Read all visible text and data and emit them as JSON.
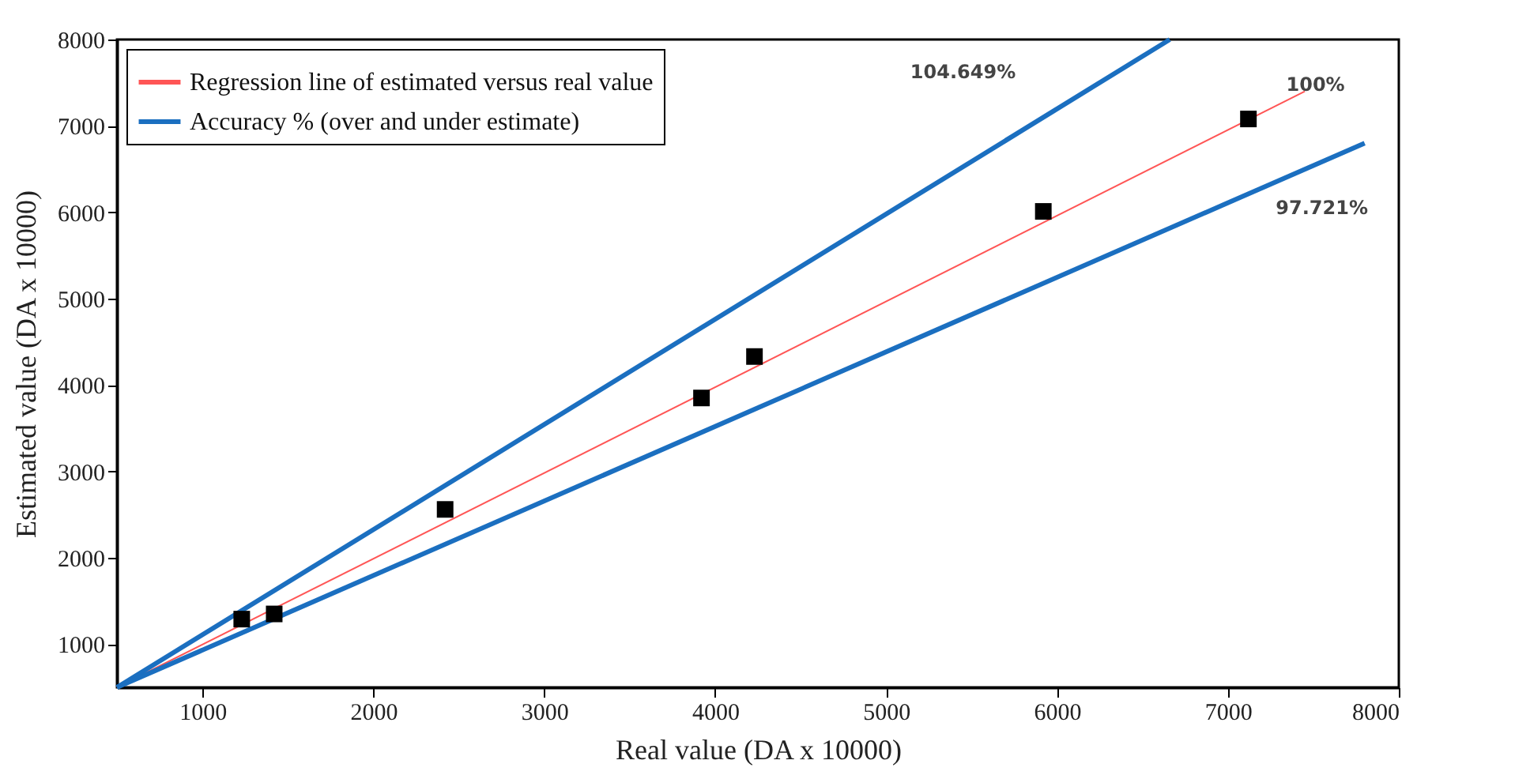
{
  "chart_data": {
    "type": "scatter",
    "xlabel": "Real value (DA x 10000)",
    "ylabel": "Estimated value (DA x 10000)",
    "xlim": [
      500,
      8000
    ],
    "xticks": [
      1000,
      2000,
      3000,
      4000,
      5000,
      6000,
      7000,
      8000
    ],
    "ylim": [
      500,
      8000
    ],
    "yticks": [
      1000,
      2000,
      3000,
      4000,
      5000,
      6000,
      7000,
      8000
    ],
    "grid": false,
    "legend": "top left",
    "series": [
      {
        "color": "#000000",
        "marker": "square",
        "x": [
          1230,
          1420,
          2420,
          3920,
          4230,
          5920,
          7120
        ],
        "values": [
          1290,
          1350,
          2560,
          3850,
          4330,
          6010,
          7080
        ]
      },
      {
        "type": "line",
        "name": "Regression line of estimated versus real value",
        "color": "#ff5555",
        "x": [
          500,
          7450
        ],
        "values": [
          500,
          7400
        ]
      },
      {
        "type": "line",
        "name": "Accuracy % (over and under estimate)",
        "color": "#1b6fc0",
        "x": [
          500,
          6660
        ],
        "values": [
          500,
          8000
        ]
      },
      {
        "type": "line",
        "color": "#1b6fc0",
        "x": [
          500,
          7800
        ],
        "values": [
          500,
          6800
        ]
      }
    ],
    "annotations": [
      "104.649%",
      "100%",
      "97.721%"
    ]
  }
}
